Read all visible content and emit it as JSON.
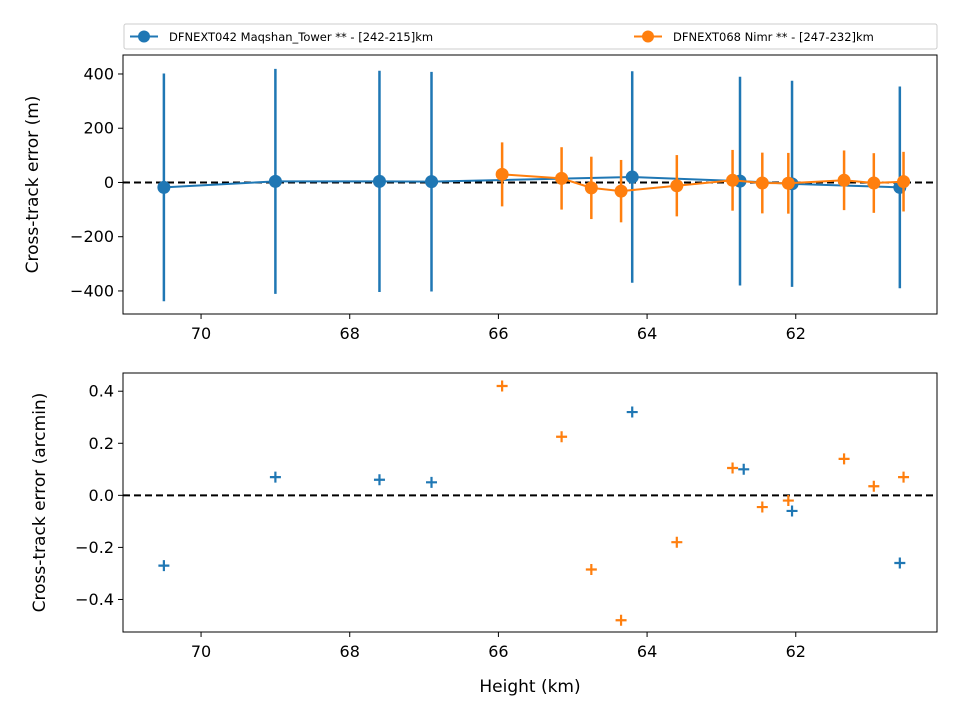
{
  "colors": {
    "series_a": "#1f77b4",
    "series_b": "#ff7f0e",
    "zero_line": "#000000"
  },
  "legend": {
    "entries": [
      {
        "label": "DFNEXT042 Maqshan_Tower **  - [242-215]km",
        "color": "#1f77b4"
      },
      {
        "label": "DFNEXT068 Nimr **  - [247-232]km",
        "color": "#ff7f0e"
      }
    ]
  },
  "chart_data": [
    {
      "type": "line",
      "ylabel": "Cross-track error (m)",
      "xlabel": "",
      "xlim": [
        71.05,
        60.1
      ],
      "ylim": [
        -485,
        470
      ],
      "x_reversed": true,
      "xticks": [
        70,
        68,
        66,
        64,
        62
      ],
      "yticks": [
        -400,
        -200,
        0,
        200,
        400
      ],
      "reference_line": 0,
      "series": [
        {
          "name": "DFNEXT042 Maqshan_Tower **  - [242-215]km",
          "color": "#1f77b4",
          "points": [
            {
              "x": 70.5,
              "y": -18,
              "err": 420
            },
            {
              "x": 69.0,
              "y": 4,
              "err": 415
            },
            {
              "x": 67.6,
              "y": 4,
              "err": 408
            },
            {
              "x": 66.9,
              "y": 3,
              "err": 405
            },
            {
              "x": 64.2,
              "y": 20,
              "err": 390
            },
            {
              "x": 62.75,
              "y": 5,
              "err": 385
            },
            {
              "x": 62.05,
              "y": -5,
              "err": 380
            },
            {
              "x": 60.6,
              "y": -18,
              "err": 372
            }
          ]
        },
        {
          "name": "DFNEXT068 Nimr **  - [247-232]km",
          "color": "#ff7f0e",
          "points": [
            {
              "x": 65.95,
              "y": 30,
              "err": 118
            },
            {
              "x": 65.15,
              "y": 15,
              "err": 115
            },
            {
              "x": 64.75,
              "y": -20,
              "err": 115
            },
            {
              "x": 64.35,
              "y": -32,
              "err": 115
            },
            {
              "x": 63.6,
              "y": -12,
              "err": 113
            },
            {
              "x": 62.85,
              "y": 8,
              "err": 112
            },
            {
              "x": 62.45,
              "y": -2,
              "err": 112
            },
            {
              "x": 62.1,
              "y": -3,
              "err": 112
            },
            {
              "x": 61.35,
              "y": 8,
              "err": 110
            },
            {
              "x": 60.95,
              "y": -2,
              "err": 110
            },
            {
              "x": 60.55,
              "y": 3,
              "err": 110
            }
          ]
        }
      ]
    },
    {
      "type": "scatter",
      "ylabel": "Cross-track error (arcmin)",
      "xlabel": "Height (km)",
      "xlim": [
        71.05,
        60.1
      ],
      "ylim": [
        -0.525,
        0.47
      ],
      "x_reversed": true,
      "xticks": [
        70,
        68,
        66,
        64,
        62
      ],
      "yticks": [
        -0.4,
        -0.2,
        0.0,
        0.2,
        0.4
      ],
      "reference_line": 0,
      "series": [
        {
          "name": "DFNEXT042 Maqshan_Tower **  - [242-215]km",
          "color": "#1f77b4",
          "points": [
            {
              "x": 70.5,
              "y": -0.27
            },
            {
              "x": 69.0,
              "y": 0.07
            },
            {
              "x": 67.6,
              "y": 0.06
            },
            {
              "x": 66.9,
              "y": 0.05
            },
            {
              "x": 64.2,
              "y": 0.32
            },
            {
              "x": 62.7,
              "y": 0.1
            },
            {
              "x": 62.05,
              "y": -0.06
            },
            {
              "x": 60.6,
              "y": -0.26
            }
          ]
        },
        {
          "name": "DFNEXT068 Nimr **  - [247-232]km",
          "color": "#ff7f0e",
          "points": [
            {
              "x": 65.95,
              "y": 0.42
            },
            {
              "x": 65.15,
              "y": 0.225
            },
            {
              "x": 64.75,
              "y": -0.285
            },
            {
              "x": 64.35,
              "y": -0.48
            },
            {
              "x": 63.6,
              "y": -0.18
            },
            {
              "x": 62.85,
              "y": 0.105
            },
            {
              "x": 62.45,
              "y": -0.045
            },
            {
              "x": 62.1,
              "y": -0.02
            },
            {
              "x": 61.35,
              "y": 0.14
            },
            {
              "x": 60.95,
              "y": 0.035
            },
            {
              "x": 60.55,
              "y": 0.07
            }
          ]
        }
      ]
    }
  ]
}
